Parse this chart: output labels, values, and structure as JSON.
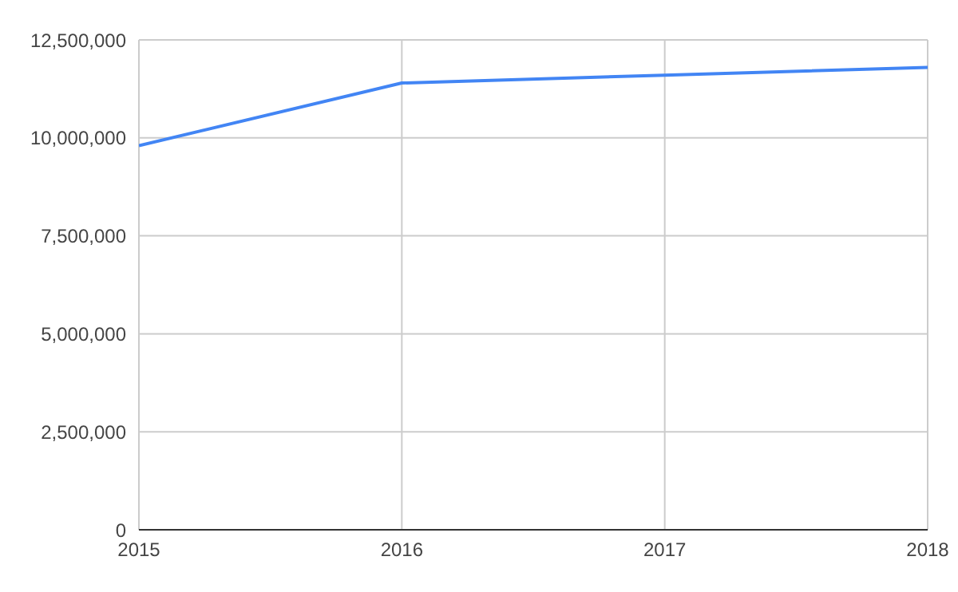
{
  "chart_data": {
    "type": "line",
    "x": [
      2015,
      2016,
      2017,
      2018
    ],
    "series": [
      {
        "color": "#4285f4",
        "values": [
          9800000,
          11400000,
          11600000,
          11800000
        ]
      }
    ],
    "xlim": [
      2015,
      2018
    ],
    "xticks": [
      2015,
      2016,
      2017,
      2018
    ],
    "ylim": [
      0,
      12500000
    ],
    "yticks": [
      0,
      {
        "value": 2500000,
        "label": "2,500,000"
      },
      {
        "value": 5000000,
        "label": "5,000,000"
      },
      {
        "value": 7500000,
        "label": "7,500,000"
      },
      {
        "value": 10000000,
        "label": "10,000,000"
      },
      {
        "value": 12500000,
        "label": "12,500,000"
      }
    ],
    "grid": true,
    "legend": false,
    "marker": "none",
    "line_style": "solid"
  }
}
